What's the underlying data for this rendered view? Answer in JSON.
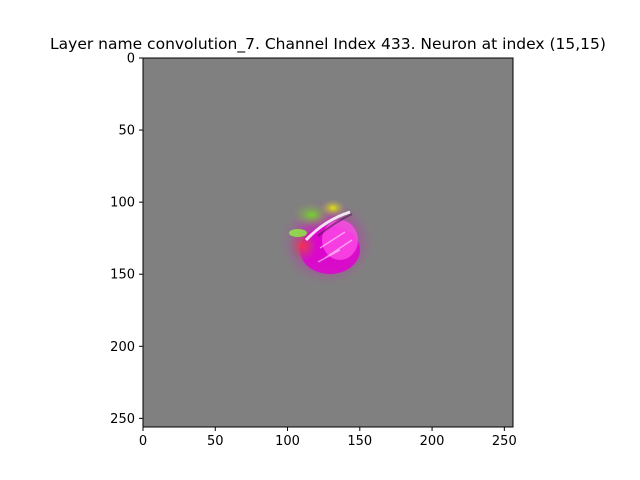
{
  "chart_data": {
    "type": "heatmap",
    "title": "Layer name convolution_7. Channel Index 433. Neuron at index (15,15)",
    "xlabel": "",
    "ylabel": "",
    "xlim": [
      0,
      256
    ],
    "ylim": [
      256,
      0
    ],
    "x_ticks": [
      0,
      50,
      100,
      150,
      200,
      250
    ],
    "y_ticks": [
      0,
      50,
      100,
      150,
      200,
      250
    ],
    "grid": false,
    "image_size": [
      256,
      256
    ],
    "background_color": "#808080",
    "blob_center": [
      125,
      127
    ],
    "blob_colors": [
      "#e000d0",
      "#ff40e0",
      "#ff3030",
      "#60e020",
      "#e8e000",
      "#ffffff"
    ]
  }
}
